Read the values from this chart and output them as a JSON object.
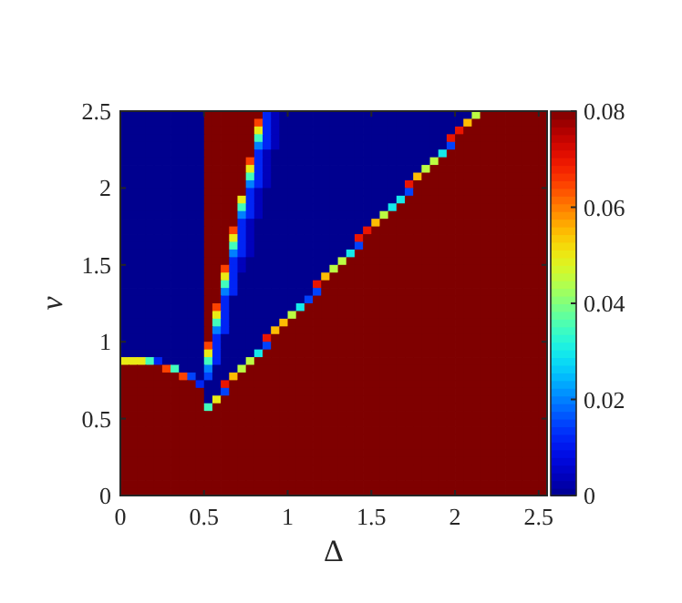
{
  "chart_data": {
    "type": "heatmap",
    "xlabel": "Δ",
    "ylabel": "v",
    "xlim": [
      0,
      2.55
    ],
    "ylim": [
      0,
      2.5
    ],
    "xticks": [
      0,
      0.5,
      1,
      1.5,
      2,
      2.5
    ],
    "yticks": [
      0,
      0.5,
      1,
      1.5,
      2,
      2.5
    ],
    "clim": [
      0,
      0.08
    ],
    "cticks": [
      0,
      0.02,
      0.04,
      0.06,
      0.08
    ],
    "x": [
      0.025,
      0.075,
      0.125,
      0.175,
      0.225,
      0.275,
      0.325,
      0.375,
      0.425,
      0.475,
      0.525,
      0.575,
      0.625,
      0.675,
      0.725,
      0.775,
      0.825,
      0.875,
      0.925,
      0.975,
      1.025,
      1.075,
      1.125,
      1.175,
      1.225,
      1.275,
      1.325,
      1.375,
      1.425,
      1.475,
      1.525,
      1.575,
      1.625,
      1.675,
      1.725,
      1.775,
      1.825,
      1.875,
      1.925,
      1.975,
      2.025,
      2.075,
      2.125,
      2.175,
      2.225,
      2.275,
      2.325,
      2.375,
      2.425,
      2.475,
      2.525
    ],
    "y": [
      2.475,
      2.425,
      2.375,
      2.325,
      2.275,
      2.225,
      2.175,
      2.125,
      2.075,
      2.025,
      1.975,
      1.925,
      1.875,
      1.825,
      1.775,
      1.725,
      1.675,
      1.625,
      1.575,
      1.525,
      1.475,
      1.425,
      1.375,
      1.325,
      1.275,
      1.225,
      1.175,
      1.125,
      1.075,
      1.025,
      0.975,
      0.925,
      0.875,
      0.825,
      0.775,
      0.725,
      0.675,
      0.625,
      0.575,
      0.525,
      0.475,
      0.425,
      0.375,
      0.325,
      0.275,
      0.225,
      0.175,
      0.125,
      0.075,
      0.025
    ],
    "cells": [
      [
        0,
        0,
        0,
        0,
        0,
        0,
        0,
        0,
        0,
        0,
        0.08,
        0.08,
        0.08,
        0.08,
        0.08,
        0.08,
        0.08,
        0.012,
        0.004,
        0,
        0,
        0,
        0,
        0,
        0,
        0,
        0,
        0,
        0,
        0,
        0,
        0,
        0,
        0,
        0,
        0,
        0,
        0,
        0,
        0,
        0,
        0,
        0.045,
        0.08,
        0.08,
        0.08,
        0.08,
        0.08,
        0.08,
        0.08,
        0.08
      ],
      [
        0,
        0,
        0,
        0,
        0,
        0,
        0,
        0,
        0,
        0,
        0.08,
        0.08,
        0.08,
        0.08,
        0.08,
        0.08,
        0.065,
        0.012,
        0.004,
        0,
        0,
        0,
        0,
        0,
        0,
        0,
        0,
        0,
        0,
        0,
        0,
        0,
        0,
        0,
        0,
        0,
        0,
        0,
        0,
        0,
        0,
        0.055,
        0.08,
        0.08,
        0.08,
        0.08,
        0.08,
        0.08,
        0.08,
        0.08,
        0.08
      ],
      [
        0,
        0,
        0,
        0,
        0,
        0,
        0,
        0,
        0,
        0,
        0.08,
        0.08,
        0.08,
        0.08,
        0.08,
        0.08,
        0.05,
        0.012,
        0.004,
        0,
        0,
        0,
        0,
        0,
        0,
        0,
        0,
        0,
        0,
        0,
        0,
        0,
        0,
        0,
        0,
        0,
        0,
        0,
        0,
        0,
        0.07,
        0.08,
        0.08,
        0.08,
        0.08,
        0.08,
        0.08,
        0.08,
        0.08,
        0.08,
        0.08
      ],
      [
        0,
        0,
        0,
        0,
        0,
        0,
        0,
        0,
        0,
        0,
        0.08,
        0.08,
        0.08,
        0.08,
        0.08,
        0.08,
        0.035,
        0.012,
        0.004,
        0,
        0,
        0,
        0,
        0,
        0,
        0,
        0,
        0,
        0,
        0,
        0,
        0,
        0,
        0,
        0,
        0,
        0,
        0,
        0,
        0.07,
        0.08,
        0.08,
        0.08,
        0.08,
        0.08,
        0.08,
        0.08,
        0.08,
        0.08,
        0.08,
        0.08
      ],
      [
        0,
        0,
        0,
        0,
        0,
        0,
        0,
        0,
        0,
        0,
        0.08,
        0.08,
        0.08,
        0.08,
        0.08,
        0.08,
        0.02,
        0.012,
        0.004,
        0,
        0,
        0,
        0,
        0,
        0,
        0,
        0,
        0,
        0,
        0,
        0,
        0,
        0,
        0,
        0,
        0,
        0,
        0,
        0,
        0.015,
        0.08,
        0.08,
        0.08,
        0.08,
        0.08,
        0.08,
        0.08,
        0.08,
        0.08,
        0.08,
        0.08
      ],
      [
        0,
        0,
        0,
        0,
        0,
        0,
        0,
        0,
        0,
        0,
        0.08,
        0.08,
        0.08,
        0.08,
        0.08,
        0.08,
        0.012,
        0.004,
        0,
        0,
        0,
        0,
        0,
        0,
        0,
        0,
        0,
        0,
        0,
        0,
        0,
        0,
        0,
        0,
        0,
        0,
        0,
        0,
        0.03,
        0.08,
        0.08,
        0.08,
        0.08,
        0.08,
        0.08,
        0.08,
        0.08,
        0.08,
        0.08,
        0.08,
        0.08
      ],
      [
        0,
        0,
        0,
        0,
        0,
        0,
        0,
        0,
        0,
        0,
        0.08,
        0.08,
        0.08,
        0.08,
        0.08,
        0.065,
        0.012,
        0.004,
        0,
        0,
        0,
        0,
        0,
        0,
        0,
        0,
        0,
        0,
        0,
        0,
        0,
        0,
        0,
        0,
        0,
        0,
        0,
        0.045,
        0.08,
        0.08,
        0.08,
        0.08,
        0.08,
        0.08,
        0.08,
        0.08,
        0.08,
        0.08,
        0.08,
        0.08,
        0.08
      ],
      [
        0,
        0,
        0,
        0,
        0,
        0,
        0,
        0,
        0,
        0,
        0.08,
        0.08,
        0.08,
        0.08,
        0.08,
        0.05,
        0.012,
        0.004,
        0,
        0,
        0,
        0,
        0,
        0,
        0,
        0,
        0,
        0,
        0,
        0,
        0,
        0,
        0,
        0,
        0,
        0,
        0.045,
        0.08,
        0.08,
        0.08,
        0.08,
        0.08,
        0.08,
        0.08,
        0.08,
        0.08,
        0.08,
        0.08,
        0.08,
        0.08,
        0.08
      ],
      [
        0,
        0,
        0,
        0,
        0,
        0,
        0,
        0,
        0,
        0,
        0.08,
        0.08,
        0.08,
        0.08,
        0.08,
        0.035,
        0.012,
        0.004,
        0,
        0,
        0,
        0,
        0,
        0,
        0,
        0,
        0,
        0,
        0,
        0,
        0,
        0,
        0,
        0,
        0,
        0.055,
        0.08,
        0.08,
        0.08,
        0.08,
        0.08,
        0.08,
        0.08,
        0.08,
        0.08,
        0.08,
        0.08,
        0.08,
        0.08,
        0.08,
        0.08
      ],
      [
        0,
        0,
        0,
        0,
        0,
        0,
        0,
        0,
        0,
        0,
        0.08,
        0.08,
        0.08,
        0.08,
        0.08,
        0.02,
        0.012,
        0.004,
        0,
        0,
        0,
        0,
        0,
        0,
        0,
        0,
        0,
        0,
        0,
        0,
        0,
        0,
        0,
        0,
        0.07,
        0.08,
        0.08,
        0.08,
        0.08,
        0.08,
        0.08,
        0.08,
        0.08,
        0.08,
        0.08,
        0.08,
        0.08,
        0.08,
        0.08,
        0.08,
        0.08
      ],
      [
        0,
        0,
        0,
        0,
        0,
        0,
        0,
        0,
        0,
        0,
        0.08,
        0.08,
        0.08,
        0.08,
        0.08,
        0.012,
        0.004,
        0,
        0,
        0,
        0,
        0,
        0,
        0,
        0,
        0,
        0,
        0,
        0,
        0,
        0,
        0,
        0,
        0,
        0.015,
        0.08,
        0.08,
        0.08,
        0.08,
        0.08,
        0.08,
        0.08,
        0.08,
        0.08,
        0.08,
        0.08,
        0.08,
        0.08,
        0.08,
        0.08,
        0.08
      ],
      [
        0,
        0,
        0,
        0,
        0,
        0,
        0,
        0,
        0,
        0,
        0.08,
        0.08,
        0.08,
        0.08,
        0.05,
        0.012,
        0.004,
        0,
        0,
        0,
        0,
        0,
        0,
        0,
        0,
        0,
        0,
        0,
        0,
        0,
        0,
        0,
        0,
        0.03,
        0.08,
        0.08,
        0.08,
        0.08,
        0.08,
        0.08,
        0.08,
        0.08,
        0.08,
        0.08,
        0.08,
        0.08,
        0.08,
        0.08,
        0.08,
        0.08,
        0.08
      ],
      [
        0,
        0,
        0,
        0,
        0,
        0,
        0,
        0,
        0,
        0,
        0.08,
        0.08,
        0.08,
        0.08,
        0.035,
        0.012,
        0.004,
        0,
        0,
        0,
        0,
        0,
        0,
        0,
        0,
        0,
        0,
        0,
        0,
        0,
        0,
        0,
        0.03,
        0.08,
        0.08,
        0.08,
        0.08,
        0.08,
        0.08,
        0.08,
        0.08,
        0.08,
        0.08,
        0.08,
        0.08,
        0.08,
        0.08,
        0.08,
        0.08,
        0.08,
        0.08
      ],
      [
        0,
        0,
        0,
        0,
        0,
        0,
        0,
        0,
        0,
        0,
        0.08,
        0.08,
        0.08,
        0.08,
        0.02,
        0.012,
        0.004,
        0,
        0,
        0,
        0,
        0,
        0,
        0,
        0,
        0,
        0,
        0,
        0,
        0,
        0,
        0.045,
        0.08,
        0.08,
        0.08,
        0.08,
        0.08,
        0.08,
        0.08,
        0.08,
        0.08,
        0.08,
        0.08,
        0.08,
        0.08,
        0.08,
        0.08,
        0.08,
        0.08,
        0.08,
        0.08
      ],
      [
        0,
        0,
        0,
        0,
        0,
        0,
        0,
        0,
        0,
        0,
        0.08,
        0.08,
        0.08,
        0.08,
        0.012,
        0.004,
        0,
        0,
        0,
        0,
        0,
        0,
        0,
        0,
        0,
        0,
        0,
        0,
        0,
        0,
        0.055,
        0.08,
        0.08,
        0.08,
        0.08,
        0.08,
        0.08,
        0.08,
        0.08,
        0.08,
        0.08,
        0.08,
        0.08,
        0.08,
        0.08,
        0.08,
        0.08,
        0.08,
        0.08,
        0.08,
        0.08
      ],
      [
        0,
        0,
        0,
        0,
        0,
        0,
        0,
        0,
        0,
        0,
        0.08,
        0.08,
        0.08,
        0.065,
        0.012,
        0.004,
        0,
        0,
        0,
        0,
        0,
        0,
        0,
        0,
        0,
        0,
        0,
        0,
        0,
        0.07,
        0.08,
        0.08,
        0.08,
        0.08,
        0.08,
        0.08,
        0.08,
        0.08,
        0.08,
        0.08,
        0.08,
        0.08,
        0.08,
        0.08,
        0.08,
        0.08,
        0.08,
        0.08,
        0.08,
        0.08,
        0.08
      ],
      [
        0,
        0,
        0,
        0,
        0,
        0,
        0,
        0,
        0,
        0,
        0.08,
        0.08,
        0.08,
        0.05,
        0.012,
        0.004,
        0,
        0,
        0,
        0,
        0,
        0,
        0,
        0,
        0,
        0,
        0,
        0,
        0.07,
        0.08,
        0.08,
        0.08,
        0.08,
        0.08,
        0.08,
        0.08,
        0.08,
        0.08,
        0.08,
        0.08,
        0.08,
        0.08,
        0.08,
        0.08,
        0.08,
        0.08,
        0.08,
        0.08,
        0.08,
        0.08,
        0.08
      ],
      [
        0,
        0,
        0,
        0,
        0,
        0,
        0,
        0,
        0,
        0,
        0.08,
        0.08,
        0.08,
        0.035,
        0.012,
        0.004,
        0,
        0,
        0,
        0,
        0,
        0,
        0,
        0,
        0,
        0,
        0,
        0,
        0.015,
        0.08,
        0.08,
        0.08,
        0.08,
        0.08,
        0.08,
        0.08,
        0.08,
        0.08,
        0.08,
        0.08,
        0.08,
        0.08,
        0.08,
        0.08,
        0.08,
        0.08,
        0.08,
        0.08,
        0.08,
        0.08,
        0.08
      ],
      [
        0,
        0,
        0,
        0,
        0,
        0,
        0,
        0,
        0,
        0,
        0.08,
        0.08,
        0.08,
        0.02,
        0.012,
        0.004,
        0,
        0,
        0,
        0,
        0,
        0,
        0,
        0,
        0,
        0,
        0,
        0.03,
        0.08,
        0.08,
        0.08,
        0.08,
        0.08,
        0.08,
        0.08,
        0.08,
        0.08,
        0.08,
        0.08,
        0.08,
        0.08,
        0.08,
        0.08,
        0.08,
        0.08,
        0.08,
        0.08,
        0.08,
        0.08,
        0.08,
        0.08
      ],
      [
        0,
        0,
        0,
        0,
        0,
        0,
        0,
        0,
        0,
        0,
        0.08,
        0.08,
        0.08,
        0.012,
        0.004,
        0,
        0,
        0,
        0,
        0,
        0,
        0,
        0,
        0,
        0,
        0,
        0.045,
        0.08,
        0.08,
        0.08,
        0.08,
        0.08,
        0.08,
        0.08,
        0.08,
        0.08,
        0.08,
        0.08,
        0.08,
        0.08,
        0.08,
        0.08,
        0.08,
        0.08,
        0.08,
        0.08,
        0.08,
        0.08,
        0.08,
        0.08,
        0.08
      ],
      [
        0,
        0,
        0,
        0,
        0,
        0,
        0,
        0,
        0,
        0,
        0.08,
        0.08,
        0.065,
        0.012,
        0.004,
        0,
        0,
        0,
        0,
        0,
        0,
        0,
        0,
        0,
        0,
        0.045,
        0.08,
        0.08,
        0.08,
        0.08,
        0.08,
        0.08,
        0.08,
        0.08,
        0.08,
        0.08,
        0.08,
        0.08,
        0.08,
        0.08,
        0.08,
        0.08,
        0.08,
        0.08,
        0.08,
        0.08,
        0.08,
        0.08,
        0.08,
        0.08,
        0.08
      ],
      [
        0,
        0,
        0,
        0,
        0,
        0,
        0,
        0,
        0,
        0,
        0.08,
        0.08,
        0.05,
        0.012,
        0,
        0,
        0,
        0,
        0,
        0,
        0,
        0,
        0,
        0,
        0.055,
        0.08,
        0.08,
        0.08,
        0.08,
        0.08,
        0.08,
        0.08,
        0.08,
        0.08,
        0.08,
        0.08,
        0.08,
        0.08,
        0.08,
        0.08,
        0.08,
        0.08,
        0.08,
        0.08,
        0.08,
        0.08,
        0.08,
        0.08,
        0.08,
        0.08,
        0.08
      ],
      [
        0,
        0,
        0,
        0,
        0,
        0,
        0,
        0,
        0,
        0,
        0.08,
        0.08,
        0.035,
        0.012,
        0,
        0,
        0,
        0,
        0,
        0,
        0,
        0,
        0,
        0.07,
        0.08,
        0.08,
        0.08,
        0.08,
        0.08,
        0.08,
        0.08,
        0.08,
        0.08,
        0.08,
        0.08,
        0.08,
        0.08,
        0.08,
        0.08,
        0.08,
        0.08,
        0.08,
        0.08,
        0.08,
        0.08,
        0.08,
        0.08,
        0.08,
        0.08,
        0.08,
        0.08
      ],
      [
        0,
        0,
        0,
        0,
        0,
        0,
        0,
        0,
        0,
        0,
        0.08,
        0.08,
        0.02,
        0.012,
        0,
        0,
        0,
        0,
        0,
        0,
        0,
        0,
        0,
        0.015,
        0.08,
        0.08,
        0.08,
        0.08,
        0.08,
        0.08,
        0.08,
        0.08,
        0.08,
        0.08,
        0.08,
        0.08,
        0.08,
        0.08,
        0.08,
        0.08,
        0.08,
        0.08,
        0.08,
        0.08,
        0.08,
        0.08,
        0.08,
        0.08,
        0.08,
        0.08,
        0.08
      ],
      [
        0,
        0,
        0,
        0,
        0,
        0,
        0,
        0,
        0,
        0,
        0.08,
        0.08,
        0.012,
        0,
        0,
        0,
        0,
        0,
        0,
        0,
        0,
        0,
        0.015,
        0.08,
        0.08,
        0.08,
        0.08,
        0.08,
        0.08,
        0.08,
        0.08,
        0.08,
        0.08,
        0.08,
        0.08,
        0.08,
        0.08,
        0.08,
        0.08,
        0.08,
        0.08,
        0.08,
        0.08,
        0.08,
        0.08,
        0.08,
        0.08,
        0.08,
        0.08,
        0.08,
        0.08
      ],
      [
        0,
        0,
        0,
        0,
        0,
        0,
        0,
        0,
        0,
        0,
        0.08,
        0.065,
        0.012,
        0,
        0,
        0,
        0,
        0,
        0,
        0,
        0,
        0.03,
        0.08,
        0.08,
        0.08,
        0.08,
        0.08,
        0.08,
        0.08,
        0.08,
        0.08,
        0.08,
        0.08,
        0.08,
        0.08,
        0.08,
        0.08,
        0.08,
        0.08,
        0.08,
        0.08,
        0.08,
        0.08,
        0.08,
        0.08,
        0.08,
        0.08,
        0.08,
        0.08,
        0.08,
        0.08
      ],
      [
        0,
        0,
        0,
        0,
        0,
        0,
        0,
        0,
        0,
        0,
        0.08,
        0.05,
        0.012,
        0,
        0,
        0,
        0,
        0,
        0,
        0,
        0.045,
        0.08,
        0.08,
        0.08,
        0.08,
        0.08,
        0.08,
        0.08,
        0.08,
        0.08,
        0.08,
        0.08,
        0.08,
        0.08,
        0.08,
        0.08,
        0.08,
        0.08,
        0.08,
        0.08,
        0.08,
        0.08,
        0.08,
        0.08,
        0.08,
        0.08,
        0.08,
        0.08,
        0.08,
        0.08,
        0.08
      ],
      [
        0,
        0,
        0,
        0,
        0,
        0,
        0,
        0,
        0,
        0,
        0.08,
        0.035,
        0.012,
        0,
        0,
        0,
        0,
        0,
        0,
        0.055,
        0.08,
        0.08,
        0.08,
        0.08,
        0.08,
        0.08,
        0.08,
        0.08,
        0.08,
        0.08,
        0.08,
        0.08,
        0.08,
        0.08,
        0.08,
        0.08,
        0.08,
        0.08,
        0.08,
        0.08,
        0.08,
        0.08,
        0.08,
        0.08,
        0.08,
        0.08,
        0.08,
        0.08,
        0.08,
        0.08,
        0.08
      ],
      [
        0,
        0,
        0,
        0,
        0,
        0,
        0,
        0,
        0,
        0,
        0.08,
        0.02,
        0.012,
        0,
        0,
        0,
        0,
        0,
        0.055,
        0.08,
        0.08,
        0.08,
        0.08,
        0.08,
        0.08,
        0.08,
        0.08,
        0.08,
        0.08,
        0.08,
        0.08,
        0.08,
        0.08,
        0.08,
        0.08,
        0.08,
        0.08,
        0.08,
        0.08,
        0.08,
        0.08,
        0.08,
        0.08,
        0.08,
        0.08,
        0.08,
        0.08,
        0.08,
        0.08,
        0.08,
        0.08
      ],
      [
        0,
        0,
        0,
        0,
        0,
        0,
        0,
        0,
        0,
        0,
        0.08,
        0.012,
        0,
        0,
        0,
        0,
        0,
        0.07,
        0.08,
        0.08,
        0.08,
        0.08,
        0.08,
        0.08,
        0.08,
        0.08,
        0.08,
        0.08,
        0.08,
        0.08,
        0.08,
        0.08,
        0.08,
        0.08,
        0.08,
        0.08,
        0.08,
        0.08,
        0.08,
        0.08,
        0.08,
        0.08,
        0.08,
        0.08,
        0.08,
        0.08,
        0.08,
        0.08,
        0.08,
        0.08,
        0.08
      ],
      [
        0,
        0,
        0,
        0,
        0,
        0,
        0,
        0,
        0,
        0,
        0.065,
        0.012,
        0,
        0,
        0,
        0,
        0,
        0.015,
        0.08,
        0.08,
        0.08,
        0.08,
        0.08,
        0.08,
        0.08,
        0.08,
        0.08,
        0.08,
        0.08,
        0.08,
        0.08,
        0.08,
        0.08,
        0.08,
        0.08,
        0.08,
        0.08,
        0.08,
        0.08,
        0.08,
        0.08,
        0.08,
        0.08,
        0.08,
        0.08,
        0.08,
        0.08,
        0.08,
        0.08,
        0.08,
        0.08
      ],
      [
        0,
        0,
        0,
        0,
        0,
        0,
        0,
        0,
        0,
        0,
        0.05,
        0.012,
        0,
        0,
        0,
        0,
        0.03,
        0.08,
        0.08,
        0.08,
        0.08,
        0.08,
        0.08,
        0.08,
        0.08,
        0.08,
        0.08,
        0.08,
        0.08,
        0.08,
        0.08,
        0.08,
        0.08,
        0.08,
        0.08,
        0.08,
        0.08,
        0.08,
        0.08,
        0.08,
        0.08,
        0.08,
        0.08,
        0.08,
        0.08,
        0.08,
        0.08,
        0.08,
        0.08,
        0.08,
        0.08
      ],
      [
        0.05,
        0.05,
        0.05,
        0.035,
        0.012,
        0,
        0,
        0,
        0,
        0,
        0.035,
        0.012,
        0,
        0,
        0,
        0.045,
        0.08,
        0.08,
        0.08,
        0.08,
        0.08,
        0.08,
        0.08,
        0.08,
        0.08,
        0.08,
        0.08,
        0.08,
        0.08,
        0.08,
        0.08,
        0.08,
        0.08,
        0.08,
        0.08,
        0.08,
        0.08,
        0.08,
        0.08,
        0.08,
        0.08,
        0.08,
        0.08,
        0.08,
        0.08,
        0.08,
        0.08,
        0.08,
        0.08,
        0.08,
        0.08
      ],
      [
        0.08,
        0.08,
        0.08,
        0.08,
        0.08,
        0.065,
        0.035,
        0,
        0,
        0,
        0.02,
        0,
        0,
        0,
        0.045,
        0.08,
        0.08,
        0.08,
        0.08,
        0.08,
        0.08,
        0.08,
        0.08,
        0.08,
        0.08,
        0.08,
        0.08,
        0.08,
        0.08,
        0.08,
        0.08,
        0.08,
        0.08,
        0.08,
        0.08,
        0.08,
        0.08,
        0.08,
        0.08,
        0.08,
        0.08,
        0.08,
        0.08,
        0.08,
        0.08,
        0.08,
        0.08,
        0.08,
        0.08,
        0.08,
        0.08
      ],
      [
        0.08,
        0.08,
        0.08,
        0.08,
        0.08,
        0.08,
        0.08,
        0.065,
        0.015,
        0,
        0.015,
        0,
        0,
        0.055,
        0.08,
        0.08,
        0.08,
        0.08,
        0.08,
        0.08,
        0.08,
        0.08,
        0.08,
        0.08,
        0.08,
        0.08,
        0.08,
        0.08,
        0.08,
        0.08,
        0.08,
        0.08,
        0.08,
        0.08,
        0.08,
        0.08,
        0.08,
        0.08,
        0.08,
        0.08,
        0.08,
        0.08,
        0.08,
        0.08,
        0.08,
        0.08,
        0.08,
        0.08,
        0.08,
        0.08,
        0.08
      ],
      [
        0.08,
        0.08,
        0.08,
        0.08,
        0.08,
        0.08,
        0.08,
        0.08,
        0.08,
        0.012,
        0,
        0,
        0.07,
        0.08,
        0.08,
        0.08,
        0.08,
        0.08,
        0.08,
        0.08,
        0.08,
        0.08,
        0.08,
        0.08,
        0.08,
        0.08,
        0.08,
        0.08,
        0.08,
        0.08,
        0.08,
        0.08,
        0.08,
        0.08,
        0.08,
        0.08,
        0.08,
        0.08,
        0.08,
        0.08,
        0.08,
        0.08,
        0.08,
        0.08,
        0.08,
        0.08,
        0.08,
        0.08,
        0.08,
        0.08,
        0.08
      ],
      [
        0.08,
        0.08,
        0.08,
        0.08,
        0.08,
        0.08,
        0.08,
        0.08,
        0.08,
        0.08,
        0,
        0,
        0.015,
        0.08,
        0.08,
        0.08,
        0.08,
        0.08,
        0.08,
        0.08,
        0.08,
        0.08,
        0.08,
        0.08,
        0.08,
        0.08,
        0.08,
        0.08,
        0.08,
        0.08,
        0.08,
        0.08,
        0.08,
        0.08,
        0.08,
        0.08,
        0.08,
        0.08,
        0.08,
        0.08,
        0.08,
        0.08,
        0.08,
        0.08,
        0.08,
        0.08,
        0.08,
        0.08,
        0.08,
        0.08,
        0.08
      ],
      [
        0.08,
        0.08,
        0.08,
        0.08,
        0.08,
        0.08,
        0.08,
        0.08,
        0.08,
        0.08,
        0,
        0.05,
        0.08,
        0.08,
        0.08,
        0.08,
        0.08,
        0.08,
        0.08,
        0.08,
        0.08,
        0.08,
        0.08,
        0.08,
        0.08,
        0.08,
        0.08,
        0.08,
        0.08,
        0.08,
        0.08,
        0.08,
        0.08,
        0.08,
        0.08,
        0.08,
        0.08,
        0.08,
        0.08,
        0.08,
        0.08,
        0.08,
        0.08,
        0.08,
        0.08,
        0.08,
        0.08,
        0.08,
        0.08,
        0.08,
        0.08
      ],
      [
        0.08,
        0.08,
        0.08,
        0.08,
        0.08,
        0.08,
        0.08,
        0.08,
        0.08,
        0.08,
        0.035,
        0.08,
        0.08,
        0.08,
        0.08,
        0.08,
        0.08,
        0.08,
        0.08,
        0.08,
        0.08,
        0.08,
        0.08,
        0.08,
        0.08,
        0.08,
        0.08,
        0.08,
        0.08,
        0.08,
        0.08,
        0.08,
        0.08,
        0.08,
        0.08,
        0.08,
        0.08,
        0.08,
        0.08,
        0.08,
        0.08,
        0.08,
        0.08,
        0.08,
        0.08,
        0.08,
        0.08,
        0.08,
        0.08,
        0.08,
        0.08
      ],
      [
        0.08,
        0.08,
        0.08,
        0.08,
        0.08,
        0.08,
        0.08,
        0.08,
        0.08,
        0.08,
        0.08,
        0.08,
        0.08,
        0.08,
        0.08,
        0.08,
        0.08,
        0.08,
        0.08,
        0.08,
        0.08,
        0.08,
        0.08,
        0.08,
        0.08,
        0.08,
        0.08,
        0.08,
        0.08,
        0.08,
        0.08,
        0.08,
        0.08,
        0.08,
        0.08,
        0.08,
        0.08,
        0.08,
        0.08,
        0.08,
        0.08,
        0.08,
        0.08,
        0.08,
        0.08,
        0.08,
        0.08,
        0.08,
        0.08,
        0.08,
        0.08
      ],
      [
        0.08,
        0.08,
        0.08,
        0.08,
        0.08,
        0.08,
        0.08,
        0.08,
        0.08,
        0.08,
        0.08,
        0.08,
        0.08,
        0.08,
        0.08,
        0.08,
        0.08,
        0.08,
        0.08,
        0.08,
        0.08,
        0.08,
        0.08,
        0.08,
        0.08,
        0.08,
        0.08,
        0.08,
        0.08,
        0.08,
        0.08,
        0.08,
        0.08,
        0.08,
        0.08,
        0.08,
        0.08,
        0.08,
        0.08,
        0.08,
        0.08,
        0.08,
        0.08,
        0.08,
        0.08,
        0.08,
        0.08,
        0.08,
        0.08,
        0.08,
        0.08
      ],
      [
        0.08,
        0.08,
        0.08,
        0.08,
        0.08,
        0.08,
        0.08,
        0.08,
        0.08,
        0.08,
        0.08,
        0.08,
        0.08,
        0.08,
        0.08,
        0.08,
        0.08,
        0.08,
        0.08,
        0.08,
        0.08,
        0.08,
        0.08,
        0.08,
        0.08,
        0.08,
        0.08,
        0.08,
        0.08,
        0.08,
        0.08,
        0.08,
        0.08,
        0.08,
        0.08,
        0.08,
        0.08,
        0.08,
        0.08,
        0.08,
        0.08,
        0.08,
        0.08,
        0.08,
        0.08,
        0.08,
        0.08,
        0.08,
        0.08,
        0.08,
        0.08
      ],
      [
        0.08,
        0.08,
        0.08,
        0.08,
        0.08,
        0.08,
        0.08,
        0.08,
        0.08,
        0.08,
        0.08,
        0.08,
        0.08,
        0.08,
        0.08,
        0.08,
        0.08,
        0.08,
        0.08,
        0.08,
        0.08,
        0.08,
        0.08,
        0.08,
        0.08,
        0.08,
        0.08,
        0.08,
        0.08,
        0.08,
        0.08,
        0.08,
        0.08,
        0.08,
        0.08,
        0.08,
        0.08,
        0.08,
        0.08,
        0.08,
        0.08,
        0.08,
        0.08,
        0.08,
        0.08,
        0.08,
        0.08,
        0.08,
        0.08,
        0.08,
        0.08
      ],
      [
        0.08,
        0.08,
        0.08,
        0.08,
        0.08,
        0.08,
        0.08,
        0.08,
        0.08,
        0.08,
        0.08,
        0.08,
        0.08,
        0.08,
        0.08,
        0.08,
        0.08,
        0.08,
        0.08,
        0.08,
        0.08,
        0.08,
        0.08,
        0.08,
        0.08,
        0.08,
        0.08,
        0.08,
        0.08,
        0.08,
        0.08,
        0.08,
        0.08,
        0.08,
        0.08,
        0.08,
        0.08,
        0.08,
        0.08,
        0.08,
        0.08,
        0.08,
        0.08,
        0.08,
        0.08,
        0.08,
        0.08,
        0.08,
        0.08,
        0.08,
        0.08
      ],
      [
        0.08,
        0.08,
        0.08,
        0.08,
        0.08,
        0.08,
        0.08,
        0.08,
        0.08,
        0.08,
        0.08,
        0.08,
        0.08,
        0.08,
        0.08,
        0.08,
        0.08,
        0.08,
        0.08,
        0.08,
        0.08,
        0.08,
        0.08,
        0.08,
        0.08,
        0.08,
        0.08,
        0.08,
        0.08,
        0.08,
        0.08,
        0.08,
        0.08,
        0.08,
        0.08,
        0.08,
        0.08,
        0.08,
        0.08,
        0.08,
        0.08,
        0.08,
        0.08,
        0.08,
        0.08,
        0.08,
        0.08,
        0.08,
        0.08,
        0.08,
        0.08
      ],
      [
        0.08,
        0.08,
        0.08,
        0.08,
        0.08,
        0.08,
        0.08,
        0.08,
        0.08,
        0.08,
        0.08,
        0.08,
        0.08,
        0.08,
        0.08,
        0.08,
        0.08,
        0.08,
        0.08,
        0.08,
        0.08,
        0.08,
        0.08,
        0.08,
        0.08,
        0.08,
        0.08,
        0.08,
        0.08,
        0.08,
        0.08,
        0.08,
        0.08,
        0.08,
        0.08,
        0.08,
        0.08,
        0.08,
        0.08,
        0.08,
        0.08,
        0.08,
        0.08,
        0.08,
        0.08,
        0.08,
        0.08,
        0.08,
        0.08,
        0.08,
        0.08
      ],
      [
        0.08,
        0.08,
        0.08,
        0.08,
        0.08,
        0.08,
        0.08,
        0.08,
        0.08,
        0.08,
        0.08,
        0.08,
        0.08,
        0.08,
        0.08,
        0.08,
        0.08,
        0.08,
        0.08,
        0.08,
        0.08,
        0.08,
        0.08,
        0.08,
        0.08,
        0.08,
        0.08,
        0.08,
        0.08,
        0.08,
        0.08,
        0.08,
        0.08,
        0.08,
        0.08,
        0.08,
        0.08,
        0.08,
        0.08,
        0.08,
        0.08,
        0.08,
        0.08,
        0.08,
        0.08,
        0.08,
        0.08,
        0.08,
        0.08,
        0.08,
        0.08
      ],
      [
        0.08,
        0.08,
        0.08,
        0.08,
        0.08,
        0.08,
        0.08,
        0.08,
        0.08,
        0.08,
        0.08,
        0.08,
        0.08,
        0.08,
        0.08,
        0.08,
        0.08,
        0.08,
        0.08,
        0.08,
        0.08,
        0.08,
        0.08,
        0.08,
        0.08,
        0.08,
        0.08,
        0.08,
        0.08,
        0.08,
        0.08,
        0.08,
        0.08,
        0.08,
        0.08,
        0.08,
        0.08,
        0.08,
        0.08,
        0.08,
        0.08,
        0.08,
        0.08,
        0.08,
        0.08,
        0.08,
        0.08,
        0.08,
        0.08,
        0.08,
        0.08
      ],
      [
        0.08,
        0.08,
        0.08,
        0.08,
        0.08,
        0.08,
        0.08,
        0.08,
        0.08,
        0.08,
        0.08,
        0.08,
        0.08,
        0.08,
        0.08,
        0.08,
        0.08,
        0.08,
        0.08,
        0.08,
        0.08,
        0.08,
        0.08,
        0.08,
        0.08,
        0.08,
        0.08,
        0.08,
        0.08,
        0.08,
        0.08,
        0.08,
        0.08,
        0.08,
        0.08,
        0.08,
        0.08,
        0.08,
        0.08,
        0.08,
        0.08,
        0.08,
        0.08,
        0.08,
        0.08,
        0.08,
        0.08,
        0.08,
        0.08,
        0.08,
        0.08
      ],
      [
        0.08,
        0.08,
        0.08,
        0.08,
        0.08,
        0.08,
        0.08,
        0.08,
        0.08,
        0.08,
        0.08,
        0.08,
        0.08,
        0.08,
        0.08,
        0.08,
        0.08,
        0.08,
        0.08,
        0.08,
        0.08,
        0.08,
        0.08,
        0.08,
        0.08,
        0.08,
        0.08,
        0.08,
        0.08,
        0.08,
        0.08,
        0.08,
        0.08,
        0.08,
        0.08,
        0.08,
        0.08,
        0.08,
        0.08,
        0.08,
        0.08,
        0.08,
        0.08,
        0.08,
        0.08,
        0.08,
        0.08,
        0.08,
        0.08,
        0.08,
        0.08
      ]
    ]
  }
}
